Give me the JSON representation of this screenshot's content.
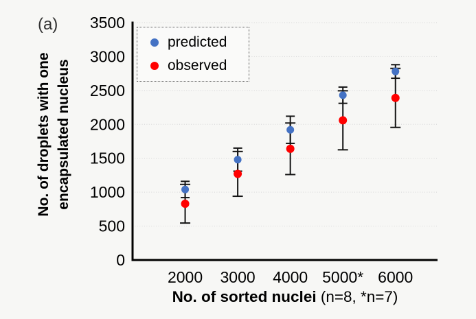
{
  "chart_data": {
    "type": "scatter",
    "panel_label": "(a)",
    "x": [
      2000,
      3000,
      4000,
      5000,
      6000
    ],
    "x_tick_labels": [
      "2000",
      "3000",
      "4000",
      "5000*",
      "6000"
    ],
    "xlabel_bold": "No. of sorted nuclei",
    "xlabel_note": "(n=8, *n=7)",
    "ylabel_line1": "No. of droplets with one",
    "ylabel_line2": "encapsulated nucleus",
    "xlim": [
      1000,
      6800
    ],
    "ylim": [
      0,
      3500
    ],
    "y_ticks": [
      0,
      500,
      1000,
      1500,
      2000,
      2500,
      3000,
      3500
    ],
    "grid": "horizontal-dotted",
    "legend_position": "top-left",
    "error_bar_color": "#141414",
    "series": [
      {
        "name": "predicted",
        "color": "#4472C4",
        "marker": "circle",
        "values": [
          1040,
          1480,
          1920,
          2430,
          2780
        ],
        "errors": [
          120,
          170,
          200,
          120,
          100
        ]
      },
      {
        "name": "observed",
        "color": "#FF0000",
        "marker": "circle",
        "values": [
          830,
          1270,
          1640,
          2060,
          2390
        ],
        "errors": [
          285,
          330,
          380,
          435,
          435
        ]
      }
    ]
  }
}
